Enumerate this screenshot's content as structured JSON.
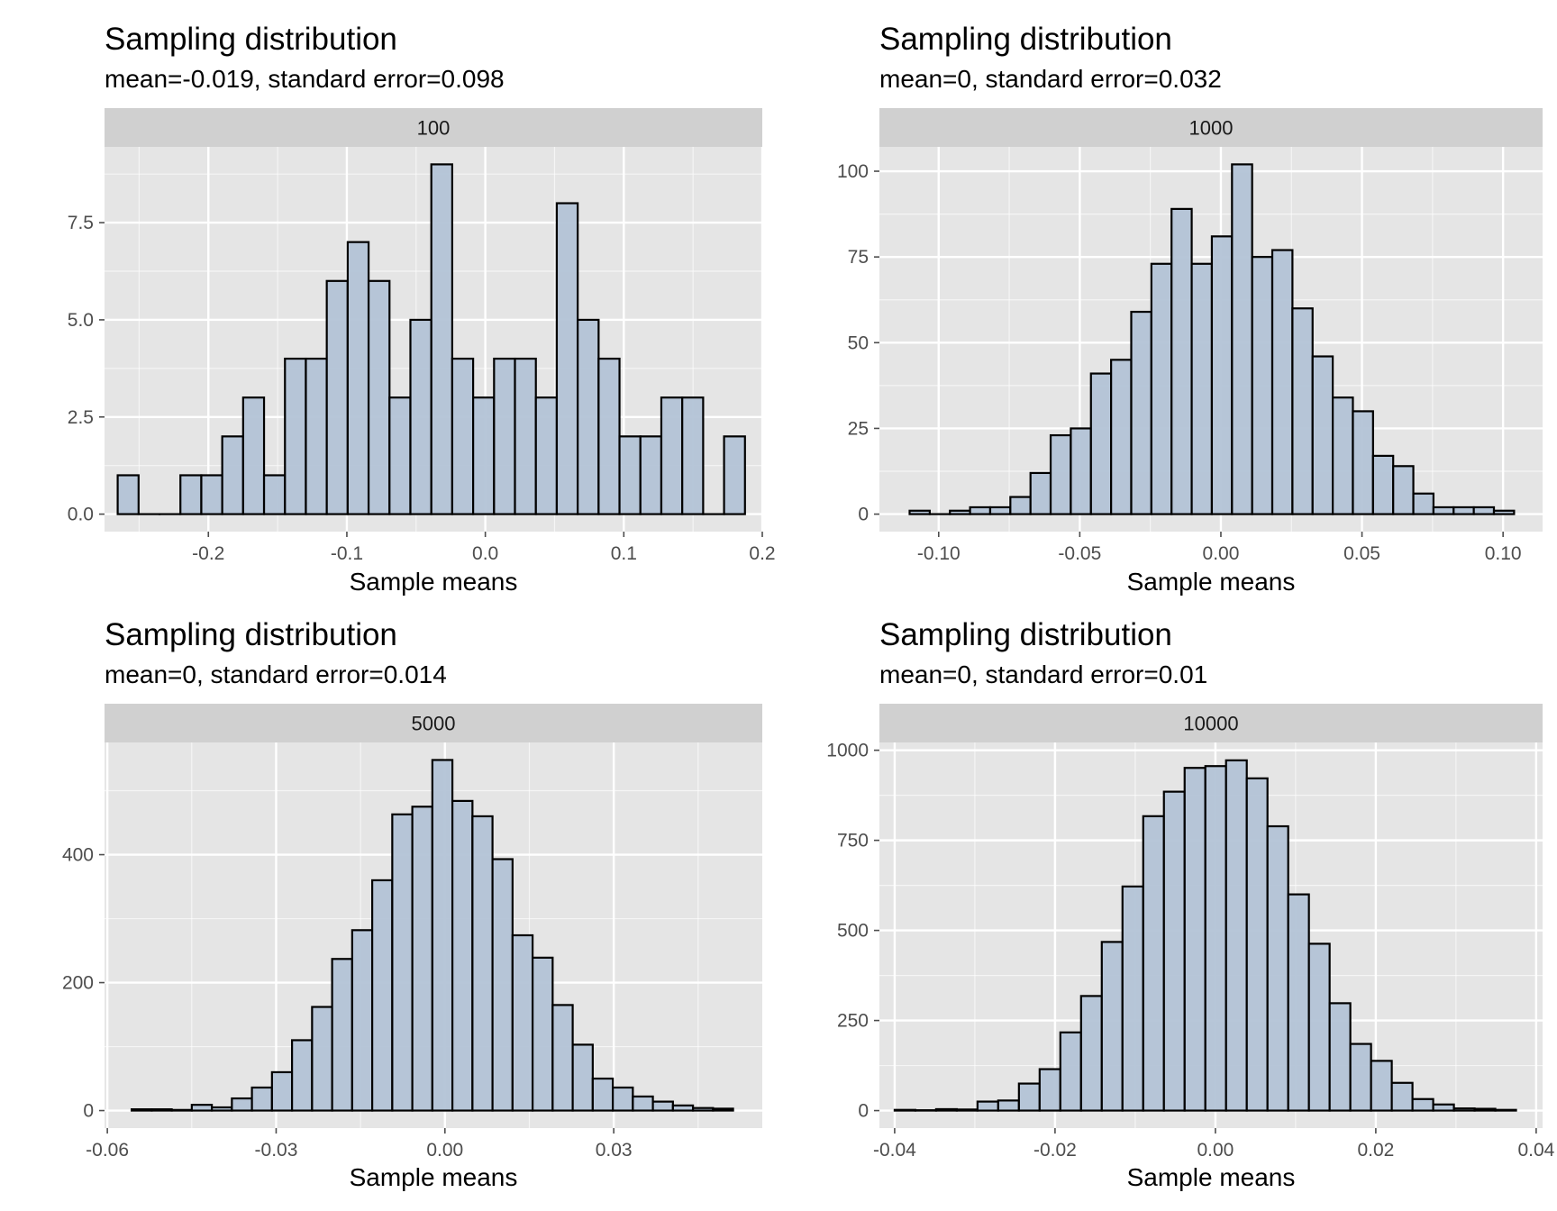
{
  "colors": {
    "panel_bg": "#e5e5e5",
    "strip_bg": "#d0d0d0",
    "grid": "#ffffff",
    "bar_fill": "#b3c3d6",
    "bar_stroke": "#000000",
    "tick_color": "#4d4d4d"
  },
  "chart_data": [
    {
      "type": "bar",
      "title": "Sampling distribution",
      "subtitle": "mean=-0.019, standard error=0.098",
      "facet": "100",
      "xlabel": "Sample means",
      "ylabel": "",
      "grid": true,
      "xlim": [
        -0.275,
        0.2
      ],
      "ylim": [
        -0.45,
        9.45
      ],
      "x_ticks": [
        -0.2,
        -0.1,
        0.0,
        0.1,
        0.2
      ],
      "x_tick_labels": [
        "-0.2",
        "-0.1",
        "0.0",
        "0.1",
        "0.2"
      ],
      "y_ticks": [
        0,
        2.5,
        5,
        7.5
      ],
      "y_tick_labels": [
        "0.0",
        "2.5",
        "5.0",
        "7.5"
      ],
      "bin_start": -0.2655,
      "bin_width": 0.0151,
      "values": [
        1,
        0,
        0,
        1,
        1,
        2,
        3,
        1,
        4,
        4,
        6,
        7,
        6,
        3,
        5,
        9,
        4,
        3,
        4,
        4,
        3,
        8,
        5,
        4,
        2,
        2,
        3,
        3,
        0,
        2
      ]
    },
    {
      "type": "bar",
      "title": "Sampling distribution",
      "subtitle": "mean=0, standard error=0.032",
      "facet": "1000",
      "xlabel": "Sample means",
      "ylabel": "",
      "grid": true,
      "xlim": [
        -0.121,
        0.114
      ],
      "ylim": [
        -5.1,
        107.1
      ],
      "x_ticks": [
        -0.1,
        -0.05,
        0.0,
        0.05,
        0.1
      ],
      "x_tick_labels": [
        "-0.10",
        "-0.05",
        "0.00",
        "0.05",
        "0.10"
      ],
      "y_ticks": [
        0,
        25,
        50,
        75,
        100
      ],
      "y_tick_labels": [
        "0",
        "25",
        "50",
        "75",
        "100"
      ],
      "bin_start": -0.1103,
      "bin_width": 0.00714,
      "values": [
        1,
        0,
        1,
        2,
        2,
        5,
        12,
        23,
        25,
        41,
        45,
        59,
        73,
        89,
        73,
        81,
        102,
        75,
        77,
        60,
        46,
        34,
        30,
        17,
        14,
        6,
        2,
        2,
        2,
        1
      ]
    },
    {
      "type": "bar",
      "title": "Sampling distribution",
      "subtitle": "mean=0, standard error=0.014",
      "facet": "5000",
      "xlabel": "Sample means",
      "ylabel": "",
      "grid": true,
      "xlim": [
        -0.0605,
        0.0564
      ],
      "ylim": [
        -27.4,
        575.4
      ],
      "x_ticks": [
        -0.06,
        -0.03,
        0.0,
        0.03
      ],
      "x_tick_labels": [
        "-0.06",
        "-0.03",
        "0.00",
        "0.03"
      ],
      "y_ticks": [
        0,
        200,
        400
      ],
      "y_tick_labels": [
        "0",
        "200",
        "400"
      ],
      "bin_start": -0.05568,
      "bin_width": 0.003563,
      "values": [
        2,
        2,
        1,
        9,
        5,
        19,
        36,
        60,
        110,
        162,
        237,
        282,
        360,
        463,
        475,
        548,
        484,
        460,
        393,
        274,
        239,
        165,
        103,
        50,
        36,
        22,
        14,
        8,
        4,
        3
      ]
    },
    {
      "type": "bar",
      "title": "Sampling distribution",
      "subtitle": "mean=0, standard error=0.01",
      "facet": "10000",
      "xlabel": "Sample means",
      "ylabel": "",
      "grid": true,
      "xlim": [
        -0.0419,
        0.0408
      ],
      "ylim": [
        -48.6,
        1021.6
      ],
      "x_ticks": [
        -0.04,
        -0.02,
        0.0,
        0.02,
        0.04
      ],
      "x_tick_labels": [
        "-0.04",
        "-0.02",
        "0.00",
        "0.02",
        "0.04"
      ],
      "y_ticks": [
        0,
        250,
        500,
        750,
        1000
      ],
      "y_tick_labels": [
        "0",
        "250",
        "500",
        "750",
        "1000"
      ],
      "bin_start": -0.04,
      "bin_width": 0.002583,
      "values": [
        2,
        1,
        4,
        3,
        25,
        28,
        75,
        115,
        217,
        318,
        468,
        622,
        817,
        885,
        951,
        956,
        972,
        922,
        789,
        600,
        463,
        298,
        185,
        138,
        77,
        32,
        17,
        6,
        5,
        2
      ]
    }
  ]
}
